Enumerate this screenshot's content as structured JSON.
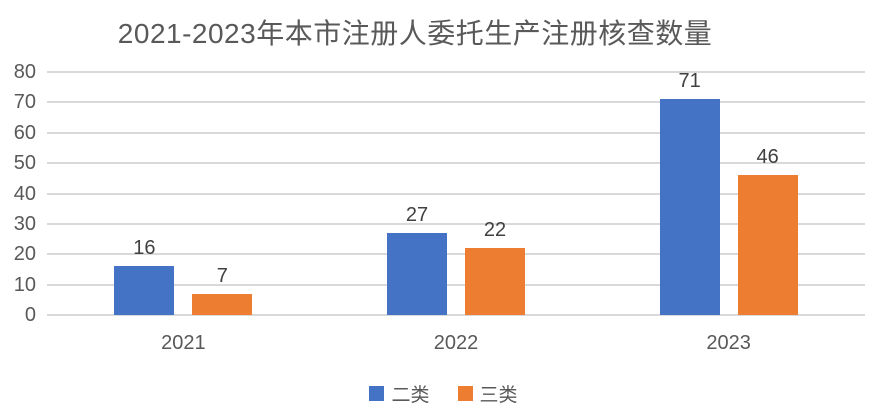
{
  "chart_data": {
    "type": "bar",
    "title": "2021-2023年本市注册人委托生产注册核查数量",
    "categories": [
      "2021",
      "2022",
      "2023"
    ],
    "series": [
      {
        "name": "二类",
        "id": "class2",
        "color": "#4472C4",
        "values": [
          16,
          27,
          71
        ]
      },
      {
        "name": "三类",
        "id": "class3",
        "color": "#ED7D31",
        "values": [
          7,
          22,
          46
        ]
      }
    ],
    "yticks": [
      0,
      10,
      20,
      30,
      40,
      50,
      60,
      70,
      80
    ],
    "ylim": [
      0,
      80
    ],
    "xlabel": "",
    "ylabel": "",
    "grid": true,
    "data_labels": true,
    "legend_position": "bottom"
  },
  "colors": {
    "background": "#FFFFFF",
    "title_text": "#595959",
    "axis_text": "#595959",
    "data_label_text": "#404040",
    "gridline": "#D9D9D9"
  }
}
